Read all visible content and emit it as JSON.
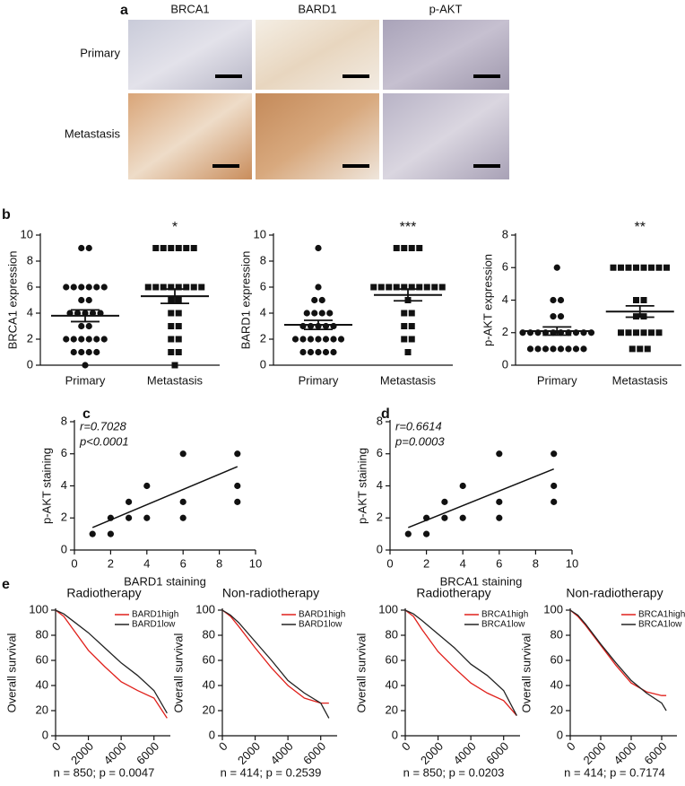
{
  "panel_labels": [
    "a",
    "b",
    "c",
    "d",
    "e"
  ],
  "panel_a": {
    "columns": [
      "BRCA1",
      "BARD1",
      "p-AKT"
    ],
    "rows": [
      "Primary",
      "Metastasis"
    ]
  },
  "chart_data": [
    {
      "type": "dot",
      "ylabel": "BRCA1 expression",
      "categories": [
        "Primary",
        "Metastasis"
      ],
      "values": [
        [
          9,
          9,
          6,
          6,
          6,
          6,
          6,
          6,
          5,
          5,
          4,
          4,
          4,
          4,
          4,
          3,
          3,
          2,
          2,
          2,
          2,
          2,
          2,
          1,
          1,
          1,
          1,
          0
        ],
        [
          9,
          9,
          9,
          9,
          9,
          9,
          6,
          6,
          6,
          6,
          6,
          6,
          6,
          6,
          5,
          5,
          4,
          4,
          3,
          3,
          2,
          2,
          1,
          1,
          0
        ]
      ],
      "mean": [
        3.8,
        5.3
      ],
      "sem": [
        0.45,
        0.55
      ],
      "annotation": "*",
      "ylim": [
        0,
        10
      ],
      "yticks": [
        0,
        2,
        4,
        6,
        8,
        10
      ]
    },
    {
      "type": "dot",
      "ylabel": "BARD1 expression",
      "categories": [
        "Primary",
        "Metastasis"
      ],
      "values": [
        [
          9,
          6,
          5,
          5,
          4,
          4,
          4,
          4,
          3,
          3,
          3,
          3,
          3,
          2,
          2,
          2,
          2,
          2,
          2,
          2,
          1,
          1,
          1,
          1,
          1
        ],
        [
          9,
          9,
          9,
          9,
          6,
          6,
          6,
          6,
          6,
          6,
          6,
          6,
          6,
          6,
          5,
          4,
          4,
          3,
          3,
          2,
          2,
          1
        ]
      ],
      "mean": [
        3.1,
        5.4
      ],
      "sem": [
        0.35,
        0.45
      ],
      "annotation": "***",
      "ylim": [
        0,
        10
      ],
      "yticks": [
        0,
        2,
        4,
        6,
        8,
        10
      ]
    },
    {
      "type": "dot",
      "ylabel": "p-AKT expression",
      "categories": [
        "Primary",
        "Metastasis"
      ],
      "values": [
        [
          6,
          4,
          4,
          3,
          3,
          2,
          2,
          2,
          2,
          2,
          2,
          2,
          2,
          2,
          2,
          1,
          1,
          1,
          1,
          1,
          1,
          1,
          1
        ],
        [
          6,
          6,
          6,
          6,
          6,
          6,
          6,
          6,
          4,
          4,
          3,
          3,
          2,
          2,
          2,
          2,
          2,
          2,
          1,
          1,
          1
        ]
      ],
      "mean": [
        2.1,
        3.3
      ],
      "sem": [
        0.25,
        0.35
      ],
      "annotation": "**",
      "ylim": [
        0,
        8
      ],
      "yticks": [
        0,
        2,
        4,
        6,
        8
      ]
    },
    {
      "type": "scatter",
      "xlabel": "BARD1 staining",
      "ylabel": "p-AKT staining",
      "annotations": [
        "r=0.7028",
        "p<0.0001"
      ],
      "x": [
        1,
        2,
        2,
        3,
        3,
        4,
        4,
        6,
        6,
        6,
        9,
        9,
        9
      ],
      "values": [
        1,
        1,
        2,
        2,
        3,
        2,
        4,
        2,
        3,
        6,
        3,
        4,
        6
      ],
      "fit": {
        "x": [
          1,
          9
        ],
        "values": [
          1.4,
          5.2
        ]
      },
      "xlim": [
        0,
        10
      ],
      "xticks": [
        0,
        2,
        4,
        6,
        8,
        10
      ],
      "ylim": [
        0,
        8
      ],
      "yticks": [
        0,
        2,
        4,
        6,
        8
      ]
    },
    {
      "type": "scatter",
      "xlabel": "BRCA1 staining",
      "ylabel": "p-AKT staining",
      "annotations": [
        "r=0.6614",
        "p=0.0003"
      ],
      "x": [
        1,
        2,
        2,
        3,
        3,
        4,
        4,
        6,
        6,
        6,
        9,
        9,
        9
      ],
      "values": [
        1,
        1,
        2,
        2,
        3,
        2,
        4,
        2,
        3,
        6,
        3,
        4,
        6
      ],
      "fit": {
        "x": [
          1,
          9
        ],
        "values": [
          1.4,
          5.05
        ]
      },
      "xlim": [
        0,
        10
      ],
      "xticks": [
        0,
        2,
        4,
        6,
        8,
        10
      ],
      "ylim": [
        0,
        8
      ],
      "yticks": [
        0,
        2,
        4,
        6,
        8
      ]
    },
    {
      "type": "line",
      "title": "Radiotherapy",
      "ylabel": "Overall survival",
      "note": "n = 850; p = 0.0047",
      "legend": "upper right",
      "x": [
        0,
        500,
        1000,
        2000,
        3000,
        4000,
        5000,
        6000,
        6800
      ],
      "series": [
        {
          "name": "BARD1high",
          "color": "#e0201b",
          "values": [
            100,
            95,
            86,
            68,
            55,
            43,
            36,
            30,
            14
          ]
        },
        {
          "name": "BARD1low",
          "color": "#222222",
          "values": [
            100,
            97,
            92,
            82,
            70,
            58,
            48,
            36,
            18
          ]
        }
      ],
      "xlim": [
        0,
        7000
      ],
      "xticks": [
        0,
        2000,
        4000,
        6000
      ],
      "ylim": [
        0,
        100
      ],
      "yticks": [
        0,
        20,
        40,
        60,
        80,
        100
      ]
    },
    {
      "type": "line",
      "title": "Non-radiotherapy",
      "ylabel": "Overall survival",
      "note": "n = 414; p = 0.2539",
      "legend": "upper right",
      "x": [
        0,
        500,
        1000,
        2000,
        3000,
        4000,
        5000,
        6000,
        6500
      ],
      "series": [
        {
          "name": "BARD1high",
          "color": "#e0201b",
          "values": [
            100,
            95,
            87,
            70,
            54,
            40,
            30,
            26,
            26
          ]
        },
        {
          "name": "BARD1low",
          "color": "#222222",
          "values": [
            100,
            96,
            90,
            75,
            60,
            44,
            34,
            26,
            14
          ]
        }
      ],
      "xlim": [
        0,
        7000
      ],
      "xticks": [
        0,
        2000,
        4000,
        6000
      ],
      "ylim": [
        0,
        100
      ],
      "yticks": [
        0,
        20,
        40,
        60,
        80,
        100
      ]
    },
    {
      "type": "line",
      "title": "Radiotherapy",
      "ylabel": "Overall survival",
      "note": "n = 850; p = 0.0203",
      "legend": "upper right",
      "x": [
        0,
        500,
        1000,
        2000,
        3000,
        4000,
        5000,
        6000,
        6800
      ],
      "series": [
        {
          "name": "BRCA1high",
          "color": "#e0201b",
          "values": [
            100,
            95,
            85,
            67,
            54,
            42,
            34,
            28,
            16
          ]
        },
        {
          "name": "BRCA1low",
          "color": "#222222",
          "values": [
            100,
            97,
            92,
            81,
            70,
            57,
            48,
            36,
            16
          ]
        }
      ],
      "xlim": [
        0,
        7000
      ],
      "xticks": [
        0,
        2000,
        4000,
        6000
      ],
      "ylim": [
        0,
        100
      ],
      "yticks": [
        0,
        20,
        40,
        60,
        80,
        100
      ]
    },
    {
      "type": "line",
      "title": "Non-radiotherapy",
      "ylabel": "Overall survival",
      "note": "n = 414; p = 0.7174",
      "legend": "upper right",
      "x": [
        0,
        500,
        1000,
        2000,
        3000,
        4000,
        5000,
        6000,
        6300
      ],
      "series": [
        {
          "name": "BRCA1high",
          "color": "#e0201b",
          "values": [
            100,
            95,
            88,
            72,
            56,
            42,
            35,
            32,
            32
          ]
        },
        {
          "name": "BRCA1low",
          "color": "#222222",
          "values": [
            100,
            96,
            89,
            73,
            58,
            44,
            34,
            26,
            20
          ]
        }
      ],
      "xlim": [
        0,
        7000
      ],
      "xticks": [
        0,
        2000,
        4000,
        6000
      ],
      "ylim": [
        0,
        100
      ],
      "yticks": [
        0,
        20,
        40,
        60,
        80,
        100
      ]
    }
  ]
}
